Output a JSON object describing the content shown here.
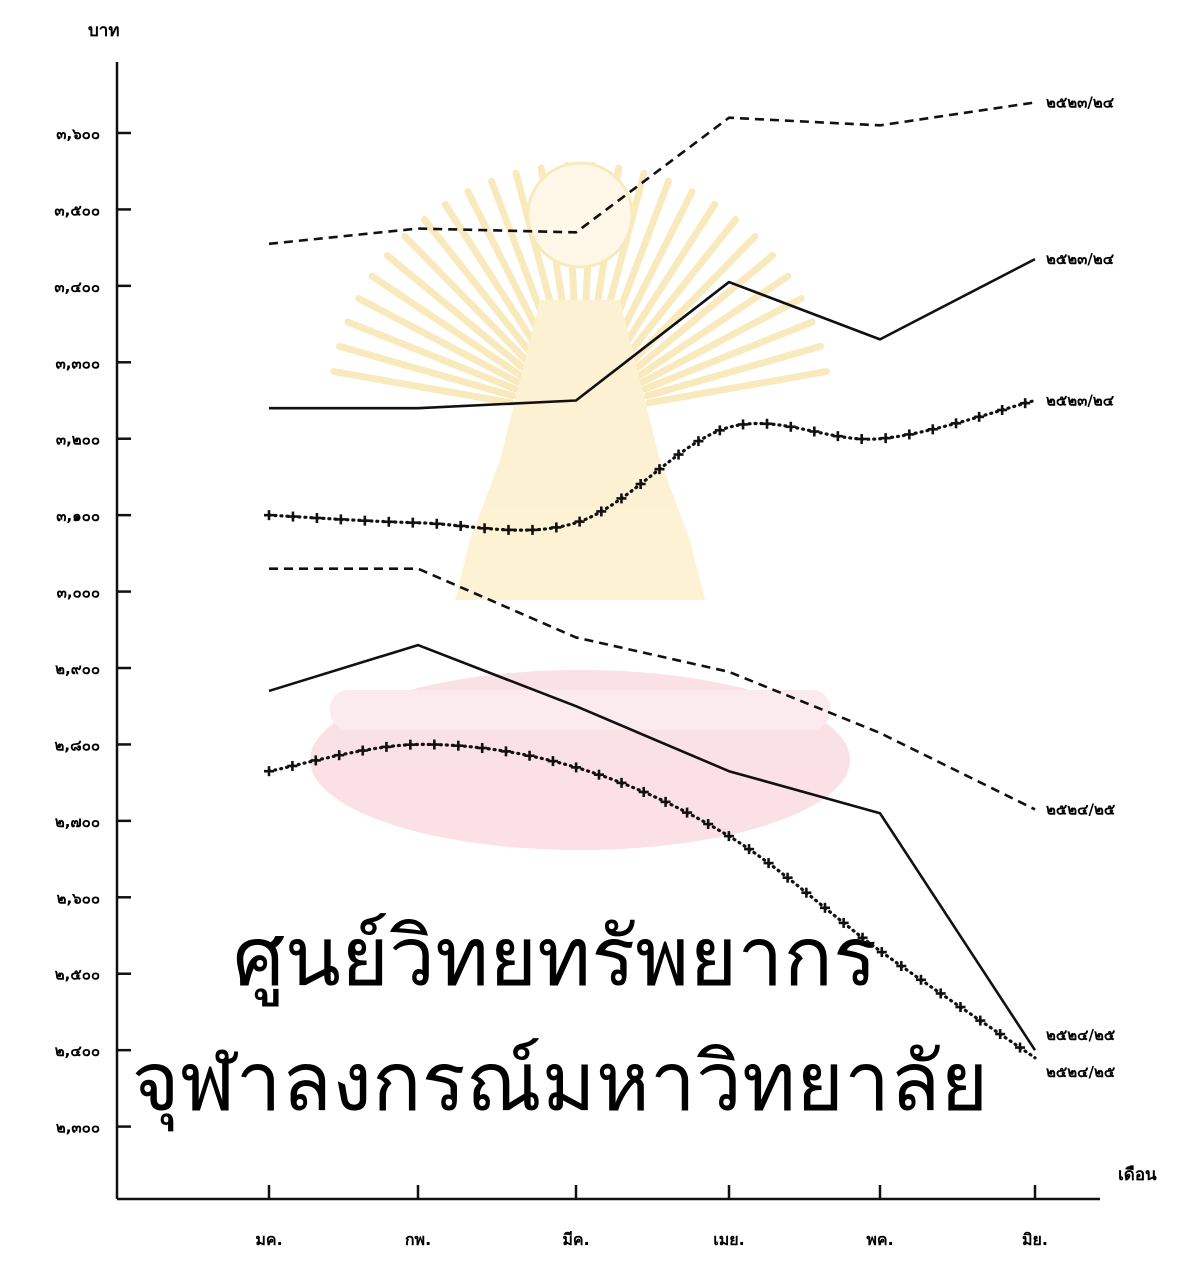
{
  "chart_data": {
    "type": "line",
    "title": "",
    "xlabel": "เดือน",
    "ylabel": "บาท",
    "categories": [
      "มค.",
      "กพ.",
      "มีค.",
      "เมย.",
      "พค.",
      "มิย."
    ],
    "y_ticks": [
      2300,
      2400,
      2500,
      2600,
      2700,
      2800,
      2900,
      3000,
      3100,
      3200,
      3300,
      3400,
      3500,
      3600
    ],
    "y_tick_labels": [
      "๒,๓๐๐",
      "๒,๔๐๐",
      "๒,๕๐๐",
      "๒,๖๐๐",
      "๒,๗๐๐",
      "๒,๘๐๐",
      "๒,๙๐๐",
      "๓,๐๐๐",
      "๓,๑๐๐",
      "๓,๒๐๐",
      "๓,๓๐๐",
      "๓,๔๐๐",
      "๓,๕๐๐",
      "๓,๖๐๐"
    ],
    "ylim": [
      2200,
      3680
    ],
    "grid": false,
    "legend": "direct labels at right end of each line",
    "series": [
      {
        "name": "๒๕๒๓/๒๔",
        "style": "dashed",
        "values": [
          3455,
          3475,
          3470,
          3620,
          3610,
          3640
        ]
      },
      {
        "name": "๒๕๒๓/๒๔",
        "style": "solid",
        "values": [
          3240,
          3240,
          3250,
          3405,
          3330,
          3435
        ]
      },
      {
        "name": "๒๕๒๓/๒๔",
        "style": "plus-dotted",
        "values": [
          3100,
          3090,
          3090,
          3215,
          3200,
          3250
        ]
      },
      {
        "name": "๒๕๒๔/๒๕",
        "style": "dashed",
        "values": [
          3030,
          3030,
          2940,
          2895,
          2815,
          2715
        ]
      },
      {
        "name": "๒๕๒๔/๒๕",
        "style": "solid",
        "values": [
          2870,
          2930,
          2850,
          2765,
          2710,
          2400
        ]
      },
      {
        "name": "๒๕๒๔/๒๕",
        "style": "plus-dotted",
        "values": [
          2765,
          2800,
          2770,
          2680,
          2530,
          2390
        ]
      }
    ]
  },
  "watermark": {
    "line1": "ศูนย์วิทยทรัพยากร",
    "line2": "จุฬาลงกรณ์มหาวิทยาลัย"
  },
  "colors": {
    "ink": "#111111",
    "watermark_text": "#f6d2d8",
    "watermark_emblem": "#fbeec4"
  }
}
